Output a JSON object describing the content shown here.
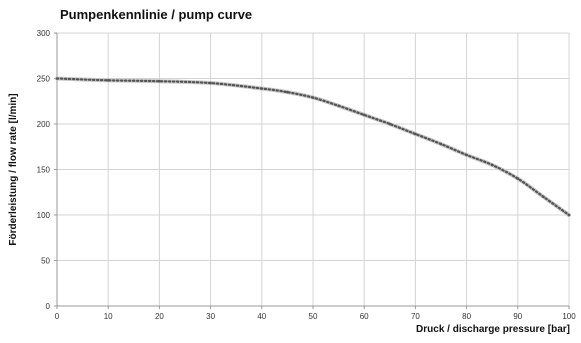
{
  "chart_data": {
    "type": "line",
    "title": "Pumpenkennlinie / pump curve",
    "xlabel": "Druck / discharge pressure  [bar]",
    "ylabel": "Förderleistung / flow rate  [l/min]",
    "xlim": [
      0,
      100
    ],
    "ylim": [
      0,
      300
    ],
    "x_ticks": [
      "0",
      "10",
      "20",
      "30",
      "40",
      "50",
      "60",
      "70",
      "80",
      "90",
      "100"
    ],
    "y_ticks": [
      "0",
      "50",
      "100",
      "150",
      "200",
      "250",
      "300"
    ],
    "grid": true,
    "legend": "none",
    "series": [
      {
        "x": [
          0,
          10,
          20,
          30,
          40,
          45,
          50,
          55,
          60,
          65,
          70,
          75,
          80,
          85,
          90,
          95,
          100
        ],
        "y": [
          250,
          248,
          247,
          245,
          239,
          235,
          229,
          220,
          210,
          200,
          189,
          178,
          166,
          155,
          140,
          120,
          100
        ]
      }
    ],
    "style": {
      "line_color": "#c9c9c9",
      "marker_color": "#555555",
      "grid_color": "#d4d4d4",
      "axis_color": "#9a9a9a"
    }
  }
}
